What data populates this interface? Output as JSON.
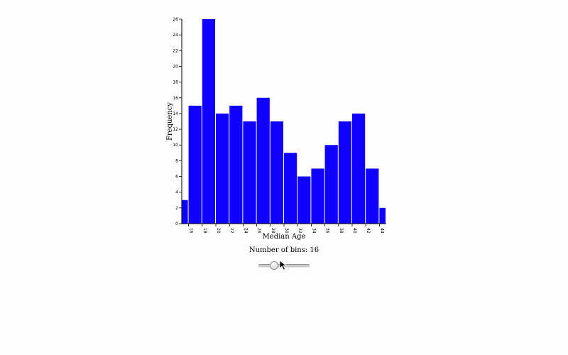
{
  "chart_data": {
    "type": "bar",
    "xlabel": "Median Age",
    "ylabel": "Frequency",
    "ylim": [
      0,
      26
    ],
    "yticks": [
      0,
      2,
      4,
      6,
      8,
      10,
      12,
      14,
      16,
      18,
      20,
      22,
      24,
      26
    ],
    "xlim": [
      15,
      45
    ],
    "xticks": [
      16,
      18,
      20,
      22,
      24,
      26,
      28,
      30,
      32,
      34,
      36,
      38,
      40,
      42,
      44
    ],
    "bins": [
      {
        "x0": 15,
        "x1": 16,
        "count": 3
      },
      {
        "x0": 16,
        "x1": 18,
        "count": 15
      },
      {
        "x0": 18,
        "x1": 20,
        "count": 26
      },
      {
        "x0": 20,
        "x1": 22,
        "count": 14
      },
      {
        "x0": 22,
        "x1": 24,
        "count": 15
      },
      {
        "x0": 24,
        "x1": 26,
        "count": 13
      },
      {
        "x0": 26,
        "x1": 28,
        "count": 16
      },
      {
        "x0": 28,
        "x1": 30,
        "count": 13
      },
      {
        "x0": 30,
        "x1": 32,
        "count": 9
      },
      {
        "x0": 32,
        "x1": 34,
        "count": 6
      },
      {
        "x0": 34,
        "x1": 36,
        "count": 7
      },
      {
        "x0": 36,
        "x1": 38,
        "count": 10
      },
      {
        "x0": 38,
        "x1": 40,
        "count": 13
      },
      {
        "x0": 40,
        "x1": 42,
        "count": 14
      },
      {
        "x0": 42,
        "x1": 44,
        "count": 7
      },
      {
        "x0": 44,
        "x1": 45,
        "count": 2
      }
    ],
    "bar_color": "#1000ff",
    "grid": false
  },
  "controls": {
    "bins_label": "Number of bins: 16",
    "slider": {
      "min": 1,
      "max": 50,
      "value": 16
    }
  }
}
